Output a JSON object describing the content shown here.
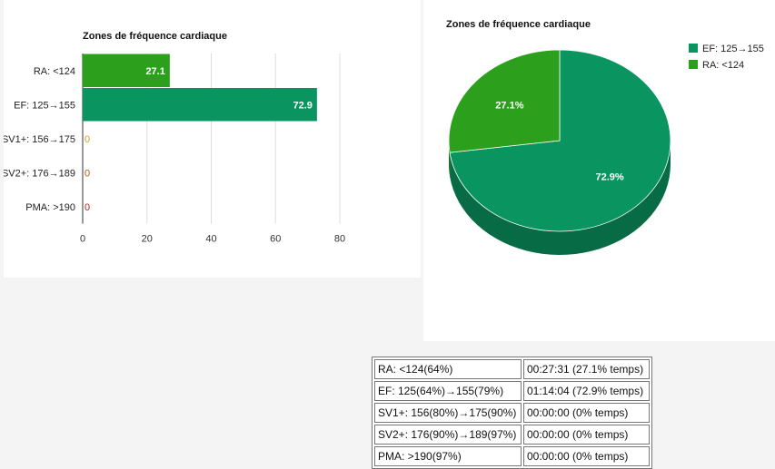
{
  "chart_data": [
    {
      "type": "bar",
      "orientation": "horizontal",
      "title": "Zones de fréquence cardiaque",
      "categories": [
        "RA: <124",
        "EF: 125→155",
        "SV1+: 156→175",
        "SV2+: 176→189",
        "PMA: >190"
      ],
      "values": [
        27.1,
        72.9,
        0,
        0,
        0
      ],
      "value_labels": [
        "27.1",
        "72.9",
        "0",
        "0",
        "0"
      ],
      "colors": [
        "#2ca01c",
        "#0a9460",
        "#c9a227",
        "#b8560f",
        "#b8201b"
      ],
      "xlim": [
        0,
        80
      ],
      "xticks": [
        0,
        20,
        40,
        60,
        80
      ],
      "grid": true,
      "legend": "none"
    },
    {
      "type": "pie",
      "title": "Zones de fréquence cardiaque",
      "labels": [
        "EF: 125→155",
        "RA: <124"
      ],
      "values": [
        72.9,
        27.1
      ],
      "value_labels": [
        "72.9%",
        "27.1%"
      ],
      "colors": [
        "#0a9460",
        "#2ca01c"
      ],
      "style": "3d",
      "legend": "top-right"
    }
  ],
  "table": {
    "rows": [
      [
        "RA: <124(64%)",
        "00:27:31 (27.1% temps)"
      ],
      [
        "EF: 125(64%)→155(79%)",
        "01:14:04 (72.9% temps)"
      ],
      [
        "SV1+: 156(80%)→175(90%)",
        "00:00:00 (0% temps)"
      ],
      [
        "SV2+: 176(90%)→189(97%)",
        "00:00:00 (0% temps)"
      ],
      [
        "PMA: >190(97%)",
        "00:00:00 (0% temps)"
      ]
    ]
  }
}
